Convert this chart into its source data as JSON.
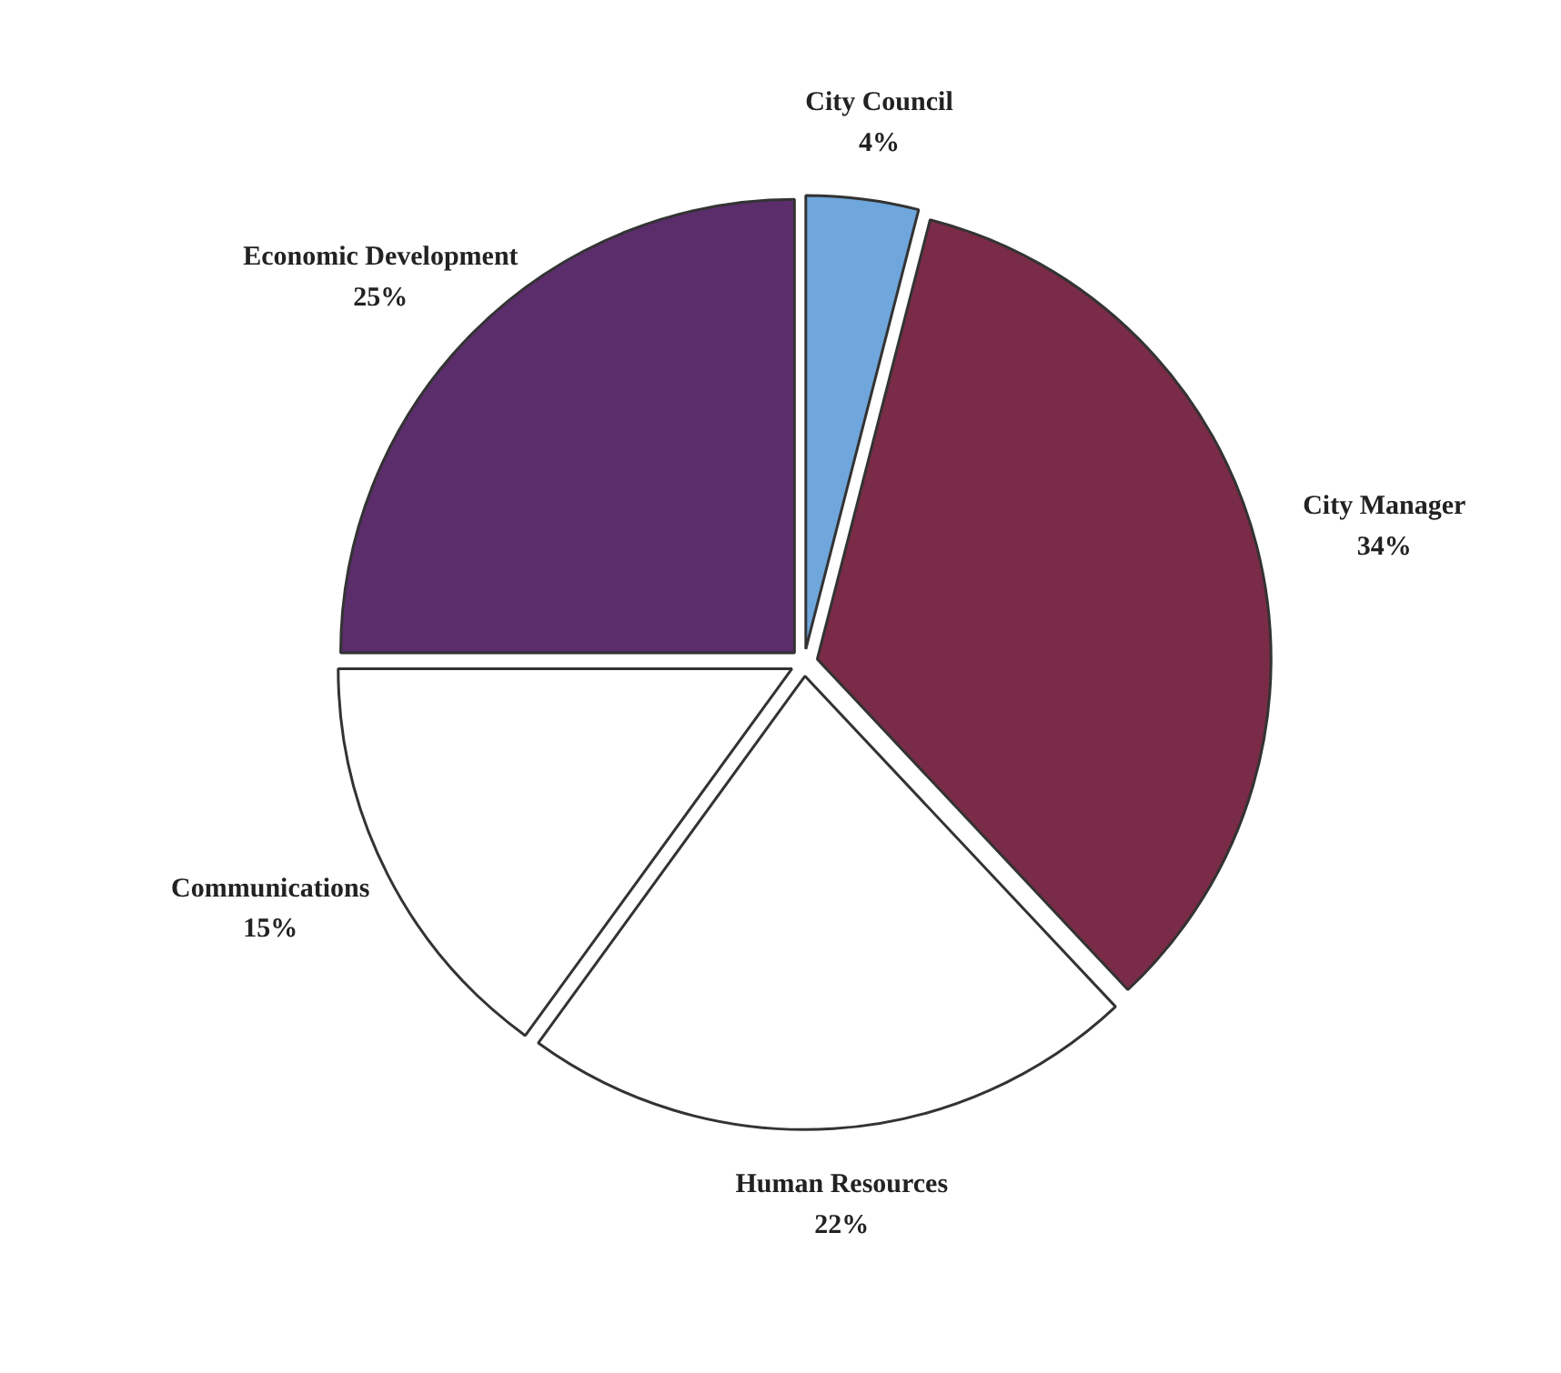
{
  "chart_data": {
    "type": "pie",
    "categories": [
      "City Council",
      "City Manager",
      "Human Resources",
      "Communications",
      "Economic Development"
    ],
    "values": [
      4,
      34,
      22,
      15,
      25
    ],
    "colors": [
      "#6fa6dc",
      "#7a2b47",
      "#ffffff",
      "#ffffff",
      "#5b2d6b"
    ],
    "value_labels": [
      "4%",
      "34%",
      "22%",
      "15%",
      "25%"
    ]
  }
}
